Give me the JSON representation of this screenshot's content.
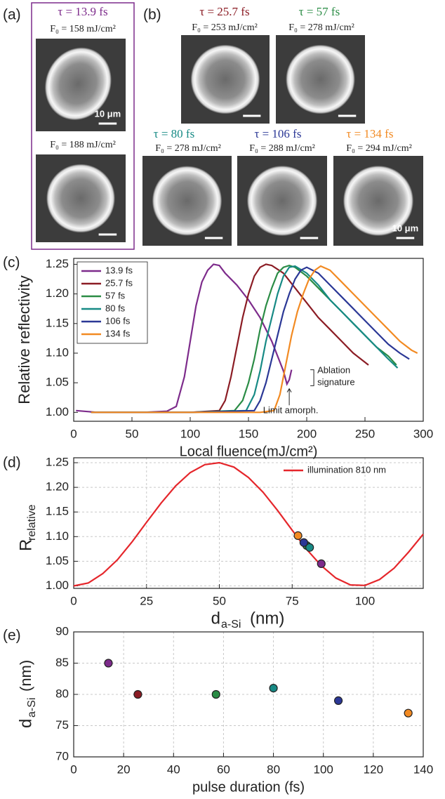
{
  "panel_labels": [
    "(a)",
    "(b)",
    "(c)",
    "(d)",
    "(e)"
  ],
  "images": [
    {
      "tau": "τ = 13.9 fs",
      "color": "#7d2b8b",
      "fluence": "F₀ = 158 mJ/cm²",
      "scalebar": "10 μm"
    },
    {
      "fluence": "F₀ = 188 mJ/cm²"
    },
    {
      "tau": "τ = 25.7 fs",
      "color": "#8b1c24",
      "fluence": "F₀ = 253 mJ/cm²"
    },
    {
      "tau": "τ = 57 fs",
      "color": "#2a8c45",
      "fluence": "F₀ = 278 mJ/cm²"
    },
    {
      "tau": "τ = 80 fs",
      "color": "#178a85",
      "fluence": "F₀ = 278 mJ/cm²"
    },
    {
      "tau": "τ = 106 fs",
      "color": "#2b3896",
      "fluence": "F₀ = 288 mJ/cm²"
    },
    {
      "tau": "τ = 134 fs",
      "color": "#f28a22",
      "fluence": "F₀ = 294 mJ/cm²",
      "scalebar": "10 μm"
    }
  ],
  "chart_data": [
    {
      "type": "line",
      "xlabel": "Local fluence(mJ/cm²)",
      "ylabel": "Relative reflectivity",
      "xlim": [
        0,
        300
      ],
      "xticks": [
        0,
        50,
        100,
        150,
        200,
        250,
        300
      ],
      "ylim": [
        0.985,
        1.26
      ],
      "yticks": [
        {
          "value": 1,
          "label": "1.00"
        },
        1.05,
        {
          "value": 1.1,
          "label": "1.10"
        },
        1.15,
        {
          "value": 1.2,
          "label": "1.20"
        },
        1.25
      ],
      "grid": false,
      "legend": "upper-left",
      "annotations": [
        "Ablation",
        "signature",
        "Limit amorph."
      ],
      "series": [
        {
          "name": "13.9 fs",
          "color": "#7d2b8b",
          "x": [
            2,
            20,
            40,
            60,
            80,
            88,
            95,
            100,
            105,
            110,
            115,
            120,
            125,
            130,
            140,
            150,
            160,
            170,
            180,
            183,
            185,
            187
          ],
          "values": [
            1.003,
            1.0,
            1.0,
            1.0,
            1.002,
            1.01,
            1.06,
            1.12,
            1.18,
            1.22,
            1.24,
            1.25,
            1.248,
            1.235,
            1.215,
            1.19,
            1.16,
            1.12,
            1.07,
            1.048,
            1.055,
            1.072
          ]
        },
        {
          "name": "25.7 fs",
          "color": "#8b1c24",
          "x": [
            15,
            50,
            100,
            125,
            130,
            135,
            140,
            145,
            150,
            155,
            160,
            165,
            170,
            180,
            190,
            200,
            210,
            220,
            230,
            240,
            253
          ],
          "values": [
            1.0,
            1.0,
            1.0,
            1.003,
            1.02,
            1.06,
            1.11,
            1.16,
            1.2,
            1.23,
            1.245,
            1.25,
            1.248,
            1.235,
            1.21,
            1.185,
            1.16,
            1.14,
            1.12,
            1.1,
            1.08
          ]
        },
        {
          "name": "57 fs",
          "color": "#2a8c45",
          "x": [
            15,
            100,
            138,
            145,
            150,
            155,
            160,
            165,
            170,
            175,
            180,
            185,
            190,
            200,
            210,
            220,
            230,
            240,
            250,
            260,
            270,
            277
          ],
          "values": [
            1.0,
            1.0,
            1.003,
            1.02,
            1.05,
            1.09,
            1.14,
            1.18,
            1.21,
            1.235,
            1.245,
            1.248,
            1.245,
            1.23,
            1.21,
            1.19,
            1.17,
            1.15,
            1.13,
            1.11,
            1.095,
            1.08
          ]
        },
        {
          "name": "80 fs",
          "color": "#178a85",
          "x": [
            15,
            100,
            148,
            155,
            160,
            165,
            170,
            175,
            180,
            185,
            190,
            200,
            210,
            220,
            230,
            240,
            250,
            260,
            270,
            278
          ],
          "values": [
            1.0,
            1.0,
            1.003,
            1.03,
            1.07,
            1.12,
            1.16,
            1.2,
            1.23,
            1.245,
            1.247,
            1.235,
            1.215,
            1.19,
            1.17,
            1.15,
            1.13,
            1.11,
            1.09,
            1.075
          ]
        },
        {
          "name": "106 fs",
          "color": "#2b3896",
          "x": [
            15,
            100,
            155,
            160,
            165,
            170,
            175,
            180,
            185,
            190,
            195,
            200,
            210,
            220,
            230,
            240,
            250,
            260,
            270,
            280,
            288
          ],
          "values": [
            1.0,
            1.0,
            1.003,
            1.02,
            1.05,
            1.09,
            1.13,
            1.17,
            1.2,
            1.225,
            1.24,
            1.245,
            1.235,
            1.215,
            1.195,
            1.175,
            1.155,
            1.135,
            1.115,
            1.1,
            1.09
          ]
        },
        {
          "name": "134 fs",
          "color": "#f28a22",
          "x": [
            15,
            100,
            160,
            172,
            177,
            182,
            187,
            192,
            197,
            202,
            207,
            212,
            220,
            230,
            240,
            250,
            260,
            270,
            280,
            290,
            295
          ],
          "values": [
            1.0,
            1.0,
            1.0,
            1.003,
            1.03,
            1.08,
            1.13,
            1.17,
            1.2,
            1.225,
            1.24,
            1.247,
            1.24,
            1.22,
            1.2,
            1.18,
            1.16,
            1.14,
            1.12,
            1.105,
            1.1
          ]
        }
      ]
    },
    {
      "type": "line",
      "xlabel": "d",
      "xlabel_sub": "a-Si",
      "xlabel_unit": "(nm)",
      "ylabel": "R",
      "ylabel_sub": "relative",
      "xlim": [
        0,
        120
      ],
      "xticks": [
        0,
        25,
        50,
        75,
        100
      ],
      "ylim": [
        0.995,
        1.26
      ],
      "yticks": [
        {
          "value": 1,
          "label": "1.00"
        },
        1.05,
        {
          "value": 1.1,
          "label": "1.10"
        },
        1.15,
        {
          "value": 1.2,
          "label": "1.20"
        },
        1.25
      ],
      "grid": true,
      "legend": "upper-right",
      "series": [
        {
          "name": "illumination 810 nm",
          "color": "#e5262b",
          "type": "line",
          "x": [
            0,
            5,
            10,
            15,
            20,
            25,
            30,
            35,
            40,
            45,
            50,
            55,
            60,
            65,
            70,
            75,
            80,
            85,
            90,
            95,
            100,
            105,
            110,
            115,
            120
          ],
          "values": [
            1.0,
            1.006,
            1.025,
            1.053,
            1.089,
            1.129,
            1.168,
            1.203,
            1.23,
            1.246,
            1.25,
            1.241,
            1.22,
            1.19,
            1.153,
            1.113,
            1.074,
            1.041,
            1.016,
            1.002,
            1.001,
            1.013,
            1.036,
            1.069,
            1.105
          ]
        },
        {
          "type": "scatter",
          "x": [
            85,
            80,
            80,
            81,
            79,
            77
          ],
          "values": [
            1.045,
            1.082,
            1.082,
            1.078,
            1.088,
            1.102
          ],
          "colors": [
            "#7d2b8b",
            "#8b1c24",
            "#2a8c45",
            "#178a85",
            "#2b3896",
            "#f28a22"
          ]
        }
      ]
    },
    {
      "type": "scatter",
      "xlabel": "pulse duration (fs)",
      "ylabel": "d",
      "ylabel_sub": "a-Si",
      "ylabel_unit": "(nm)",
      "xlim": [
        0,
        140
      ],
      "xticks": [
        0,
        20,
        40,
        60,
        80,
        100,
        120,
        140
      ],
      "ylim": [
        70,
        90
      ],
      "yticks": [
        70,
        75,
        80,
        85,
        90
      ],
      "grid": true,
      "series": [
        {
          "type": "scatter",
          "x": [
            13.9,
            25.7,
            57,
            80,
            106,
            134
          ],
          "values": [
            85,
            80,
            80,
            81,
            79,
            77
          ],
          "colors": [
            "#7d2b8b",
            "#8b1c24",
            "#2a8c45",
            "#178a85",
            "#2b3896",
            "#f28a22"
          ]
        }
      ]
    }
  ]
}
